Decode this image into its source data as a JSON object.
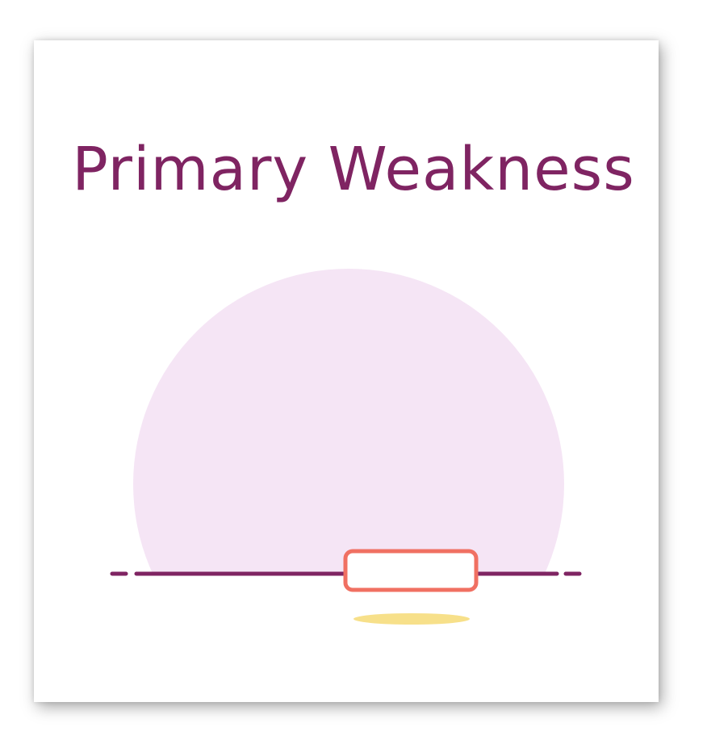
{
  "title": "Primary Weakness",
  "colors": {
    "title": "#7f2462",
    "circle": "#f5e5f5",
    "line": "#7f2462",
    "box_border": "#f07062",
    "box_fill": "#ffffff",
    "shadow_ellipse": "#f7e08a"
  },
  "icons": {
    "illustration": "sunset-with-empty-box-icon"
  }
}
